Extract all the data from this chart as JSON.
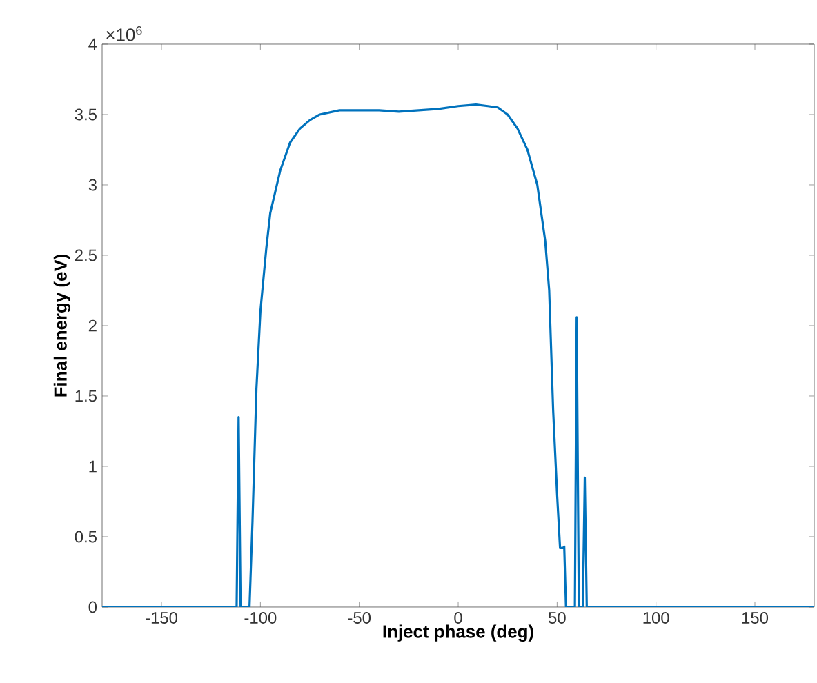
{
  "chart_data": {
    "type": "line",
    "xlabel": "Inject phase (deg)",
    "ylabel": "Final energy (eV)",
    "annotations": [
      "×10$^{6}$"
    ],
    "x": [
      -180,
      -112,
      -111,
      -110,
      -105.5,
      -104,
      -102,
      -100,
      -97,
      -95,
      -90,
      -85,
      -80,
      -75,
      -70,
      -60,
      -50,
      -40,
      -30,
      -20,
      -10,
      0,
      9,
      15,
      20,
      25,
      30,
      35,
      40,
      44,
      46,
      48,
      50,
      51.5,
      53,
      53.6,
      54.5,
      59,
      59.9,
      61,
      63,
      64,
      65,
      180
    ],
    "values": [
      0,
      0,
      1.35,
      0,
      0,
      0.6,
      1.55,
      2.1,
      2.55,
      2.8,
      3.1,
      3.3,
      3.4,
      3.46,
      3.5,
      3.53,
      3.53,
      3.53,
      3.52,
      3.53,
      3.54,
      3.56,
      3.57,
      3.56,
      3.55,
      3.5,
      3.4,
      3.25,
      3.0,
      2.6,
      2.25,
      1.4,
      0.8,
      0.42,
      0.42,
      0.43,
      0,
      0,
      2.06,
      0,
      0,
      0.92,
      0,
      0
    ],
    "color": "#0072bd",
    "line_style": "solid",
    "xlim": [
      -180,
      180
    ],
    "xticks": [
      -150,
      -100,
      -50,
      0,
      50,
      100,
      150
    ],
    "ylim": [
      0,
      4
    ],
    "yticks": [
      0,
      0.5,
      1,
      1.5,
      2,
      2.5,
      3,
      3.5,
      4
    ]
  }
}
